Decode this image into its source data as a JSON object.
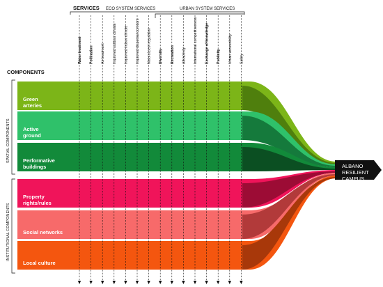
{
  "header": {
    "services_title": "SERVICES",
    "eco_group_label": "ECO SYSTEM SERVICES",
    "urban_group_label": "URBAN SYSTEM SERVICES",
    "components_title": "COMPONENTS"
  },
  "side_groups": {
    "spatial": "SPATIAL COMPONENTS",
    "institutional": "INSTITUTIONAL COMPONENTS"
  },
  "services": [
    {
      "label": "Water treatment",
      "bold": true
    },
    {
      "label": "Pollination",
      "bold": true
    },
    {
      "label": "Air treatment",
      "bold": false
    },
    {
      "label": "Improved outdoor climate",
      "bold": false
    },
    {
      "label": "Improved indoor climate",
      "bold": false
    },
    {
      "label": "Improved dispersal corridors",
      "bold": false
    },
    {
      "label": "Natural pest regulation",
      "bold": false
    },
    {
      "label": "Diversity",
      "bold": true
    },
    {
      "label": "Recreation",
      "bold": true
    },
    {
      "label": "Attractivity",
      "bold": false
    },
    {
      "label": "International competitiveness",
      "bold": false
    },
    {
      "label": "Exchange of knowledge",
      "bold": true
    },
    {
      "label": "Publicity",
      "bold": true
    },
    {
      "label": "Urban accessibility",
      "bold": false
    },
    {
      "label": "Safety",
      "bold": false
    }
  ],
  "components": [
    {
      "label_lines": [
        "Green",
        "arteries"
      ],
      "color": "#7cb518",
      "dark": "#4f7f0d"
    },
    {
      "label_lines": [
        "Active",
        "ground"
      ],
      "color": "#2fc16a",
      "dark": "#157a3c"
    },
    {
      "label_lines": [
        "Performative",
        "buildings"
      ],
      "color": "#128a3a",
      "dark": "#0b4f22"
    },
    {
      "label_lines": [
        "Property",
        "rights/rules"
      ],
      "color": "#f0145a",
      "dark": "#9c0c35"
    },
    {
      "label_lines": [
        "Social networks"
      ],
      "color": "#f76a6a",
      "dark": "#b23a3a"
    },
    {
      "label_lines": [
        "Local culture"
      ],
      "color": "#f4560f",
      "dark": "#a8380a"
    }
  ],
  "target": {
    "lines": [
      "ALBANO",
      "RESILIENT",
      "CAMPUS"
    ],
    "color": "#111111"
  }
}
